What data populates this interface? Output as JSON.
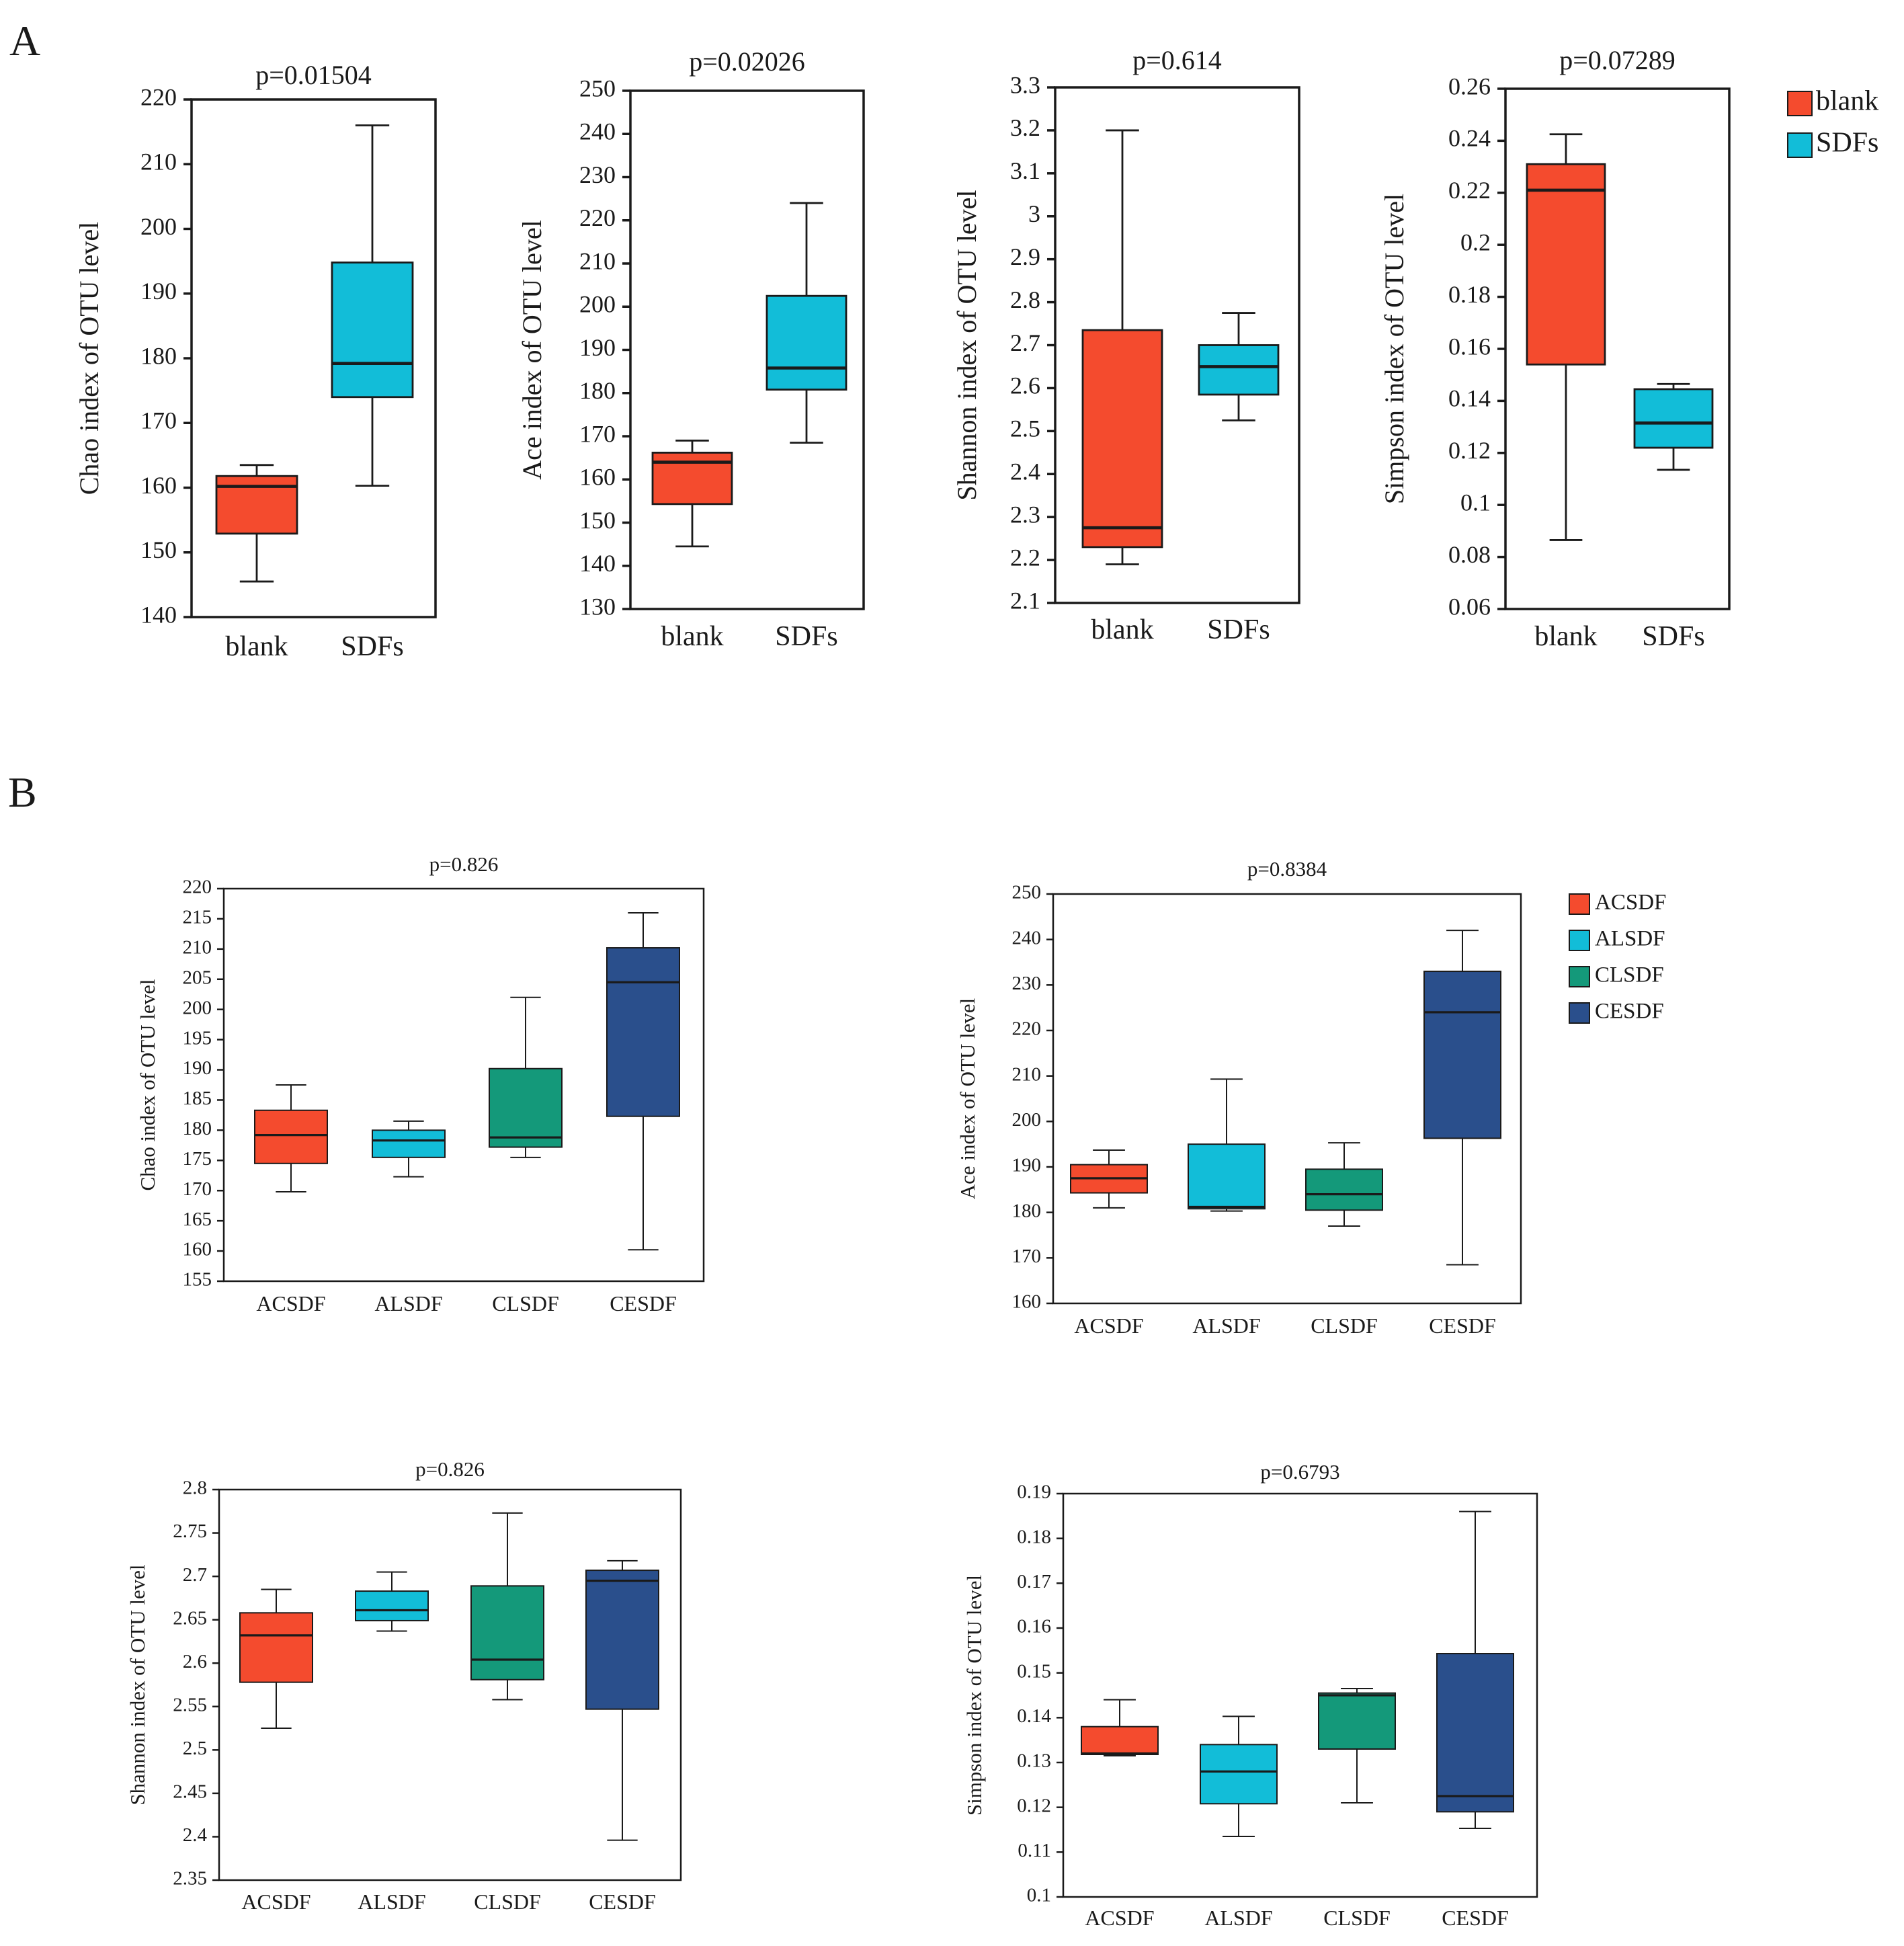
{
  "panel_labels": [
    "A",
    "B"
  ],
  "colors": {
    "blank": "#f44b2e",
    "SDFs": "#12bdd8",
    "ACSDF": "#f44b2e",
    "ALSDF": "#12bdd8",
    "CLSDF": "#14997a",
    "CESDF": "#2a4f8c",
    "line": "#1a1a1a"
  },
  "legend_A": [
    "blank",
    "SDFs"
  ],
  "legend_B": [
    "ACSDF",
    "ALSDF",
    "CLSDF",
    "CESDF"
  ],
  "chart_data": [
    {
      "type": "box",
      "panel": "A",
      "title": "p=0.01504",
      "ylabel": "Chao index of OTU level",
      "categories": [
        "blank",
        "SDFs"
      ],
      "ylim": [
        140,
        220
      ],
      "yticks": [
        "140",
        "150",
        "160",
        "170",
        "180",
        "190",
        "200",
        "210",
        "220"
      ],
      "boxes": [
        {
          "name": "blank",
          "min": 145.5,
          "q1": 152.9,
          "median": 160.2,
          "q3": 161.8,
          "max": 163.5
        },
        {
          "name": "SDFs",
          "min": 160.3,
          "q1": 174.0,
          "median": 179.2,
          "q3": 194.8,
          "max": 216.0
        }
      ]
    },
    {
      "type": "box",
      "panel": "A",
      "title": "p=0.02026",
      "ylabel": "Ace index of OTU level",
      "categories": [
        "blank",
        "SDFs"
      ],
      "ylim": [
        130,
        250
      ],
      "yticks": [
        "130",
        "140",
        "150",
        "160",
        "170",
        "180",
        "190",
        "200",
        "210",
        "220",
        "230",
        "240",
        "250"
      ],
      "boxes": [
        {
          "name": "blank",
          "min": 144.5,
          "q1": 154.3,
          "median": 164.0,
          "q3": 166.2,
          "max": 169.0
        },
        {
          "name": "SDFs",
          "min": 168.5,
          "q1": 180.8,
          "median": 185.8,
          "q3": 202.5,
          "max": 224.0
        }
      ]
    },
    {
      "type": "box",
      "panel": "A",
      "title": "p=0.614",
      "ylabel": "Shannon index of OTU level",
      "categories": [
        "blank",
        "SDFs"
      ],
      "ylim": [
        2.1,
        3.3
      ],
      "yticks": [
        "2.1",
        "2.2",
        "2.3",
        "2.4",
        "2.5",
        "2.6",
        "2.7",
        "2.8",
        "2.9",
        "3",
        "3.1",
        "3.2",
        "3.3"
      ],
      "boxes": [
        {
          "name": "blank",
          "min": 2.19,
          "q1": 2.23,
          "median": 2.275,
          "q3": 2.735,
          "max": 3.2
        },
        {
          "name": "SDFs",
          "min": 2.525,
          "q1": 2.585,
          "median": 2.65,
          "q3": 2.7,
          "max": 2.775
        }
      ]
    },
    {
      "type": "box",
      "panel": "A",
      "title": "p=0.07289",
      "ylabel": "Simpson index of OTU level",
      "categories": [
        "blank",
        "SDFs"
      ],
      "ylim": [
        0.06,
        0.26
      ],
      "yticks": [
        "0.06",
        "0.08",
        "0.1",
        "0.12",
        "0.14",
        "0.16",
        "0.18",
        "0.2",
        "0.22",
        "0.24",
        "0.26"
      ],
      "boxes": [
        {
          "name": "blank",
          "min": 0.0865,
          "q1": 0.154,
          "median": 0.221,
          "q3": 0.231,
          "max": 0.2425
        },
        {
          "name": "SDFs",
          "min": 0.1135,
          "q1": 0.122,
          "median": 0.1315,
          "q3": 0.1445,
          "max": 0.1465
        }
      ]
    },
    {
      "type": "box",
      "panel": "B",
      "title": "p=0.826",
      "ylabel": "Chao index of OTU level",
      "categories": [
        "ACSDF",
        "ALSDF",
        "CLSDF",
        "CESDF"
      ],
      "ylim": [
        155,
        220
      ],
      "yticks": [
        "155",
        "160",
        "165",
        "170",
        "175",
        "180",
        "185",
        "190",
        "195",
        "200",
        "205",
        "210",
        "215",
        "220"
      ],
      "boxes": [
        {
          "name": "ACSDF",
          "min": 169.8,
          "q1": 174.5,
          "median": 179.2,
          "q3": 183.3,
          "max": 187.5
        },
        {
          "name": "ALSDF",
          "min": 172.3,
          "q1": 175.5,
          "median": 178.3,
          "q3": 180.0,
          "max": 181.5
        },
        {
          "name": "CLSDF",
          "min": 175.5,
          "q1": 177.2,
          "median": 178.8,
          "q3": 190.2,
          "max": 202.0
        },
        {
          "name": "CESDF",
          "min": 160.2,
          "q1": 182.3,
          "median": 204.5,
          "q3": 210.2,
          "max": 216.0
        }
      ]
    },
    {
      "type": "box",
      "panel": "B",
      "title": "p=0.8384",
      "ylabel": "Ace index of OTU level",
      "categories": [
        "ACSDF",
        "ALSDF",
        "CLSDF",
        "CESDF"
      ],
      "ylim": [
        160,
        250
      ],
      "yticks": [
        "160",
        "170",
        "180",
        "190",
        "200",
        "210",
        "220",
        "230",
        "240",
        "250"
      ],
      "boxes": [
        {
          "name": "ACSDF",
          "min": 181.0,
          "q1": 184.3,
          "median": 187.5,
          "q3": 190.5,
          "max": 193.7
        },
        {
          "name": "ALSDF",
          "min": 180.3,
          "q1": 180.8,
          "median": 181.2,
          "q3": 195.0,
          "max": 209.3
        },
        {
          "name": "CLSDF",
          "min": 177.0,
          "q1": 180.5,
          "median": 184.0,
          "q3": 189.5,
          "max": 195.3
        },
        {
          "name": "CESDF",
          "min": 168.5,
          "q1": 196.3,
          "median": 224.0,
          "q3": 233.0,
          "max": 242.0
        }
      ]
    },
    {
      "type": "box",
      "panel": "B",
      "title": "p=0.826",
      "ylabel": "Shannon index of OTU level",
      "categories": [
        "ACSDF",
        "ALSDF",
        "CLSDF",
        "CESDF"
      ],
      "ylim": [
        2.35,
        2.8
      ],
      "yticks": [
        "2.35",
        "2.4",
        "2.45",
        "2.5",
        "2.55",
        "2.6",
        "2.65",
        "2.7",
        "2.75",
        "2.8"
      ],
      "boxes": [
        {
          "name": "ACSDF",
          "min": 2.525,
          "q1": 2.578,
          "median": 2.632,
          "q3": 2.658,
          "max": 2.685
        },
        {
          "name": "ALSDF",
          "min": 2.637,
          "q1": 2.649,
          "median": 2.661,
          "q3": 2.683,
          "max": 2.705
        },
        {
          "name": "CLSDF",
          "min": 2.558,
          "q1": 2.581,
          "median": 2.604,
          "q3": 2.689,
          "max": 2.773
        },
        {
          "name": "CESDF",
          "min": 2.396,
          "q1": 2.547,
          "median": 2.695,
          "q3": 2.707,
          "max": 2.718
        }
      ]
    },
    {
      "type": "box",
      "panel": "B",
      "title": "p=0.6793",
      "ylabel": "Simpson index of OTU level",
      "categories": [
        "ACSDF",
        "ALSDF",
        "CLSDF",
        "CESDF"
      ],
      "ylim": [
        0.1,
        0.19
      ],
      "yticks": [
        "0.1",
        "0.11",
        "0.12",
        "0.13",
        "0.14",
        "0.15",
        "0.16",
        "0.17",
        "0.18",
        "0.19"
      ],
      "boxes": [
        {
          "name": "ACSDF",
          "min": 0.1315,
          "q1": 0.1318,
          "median": 0.132,
          "q3": 0.138,
          "max": 0.144
        },
        {
          "name": "ALSDF",
          "min": 0.1135,
          "q1": 0.1208,
          "median": 0.128,
          "q3": 0.134,
          "max": 0.1403
        },
        {
          "name": "CLSDF",
          "min": 0.121,
          "q1": 0.133,
          "median": 0.145,
          "q3": 0.1455,
          "max": 0.1465
        },
        {
          "name": "CESDF",
          "min": 0.1153,
          "q1": 0.119,
          "median": 0.1225,
          "q3": 0.1543,
          "max": 0.186
        }
      ]
    }
  ]
}
